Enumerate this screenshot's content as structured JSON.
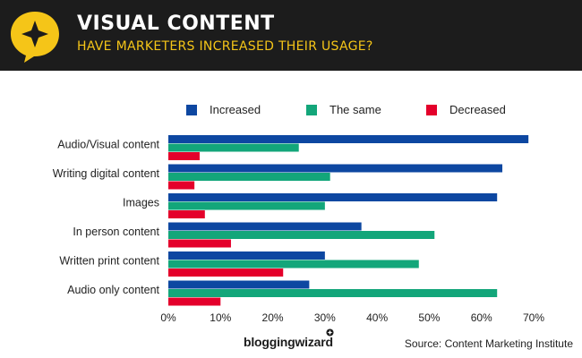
{
  "header": {
    "title": "VISUAL CONTENT",
    "subtitle": "HAVE MARKETERS INCREASED THEIR USAGE?"
  },
  "footer": {
    "brand": "bloggingwizard",
    "source": "Source: Content Marketing Institute"
  },
  "chart_data": {
    "type": "bar",
    "orientation": "horizontal",
    "categories": [
      "Audio/Visual content",
      "Writing digital content",
      "Images",
      "In person content",
      "Written print content",
      "Audio only content"
    ],
    "series": [
      {
        "name": "Increased",
        "color": "#0d47a1",
        "values": [
          69,
          64,
          63,
          37,
          30,
          27
        ]
      },
      {
        "name": "The same",
        "color": "#13a67a",
        "values": [
          25,
          31,
          30,
          51,
          48,
          63
        ]
      },
      {
        "name": "Decreased",
        "color": "#e4002b",
        "values": [
          6,
          5,
          7,
          12,
          22,
          10
        ]
      }
    ],
    "xlim": [
      0,
      70
    ],
    "xticks": [
      "0%",
      "10%",
      "20%",
      "30%",
      "40%",
      "50%",
      "60%",
      "70%"
    ],
    "grid": false,
    "legend_position": "top"
  }
}
